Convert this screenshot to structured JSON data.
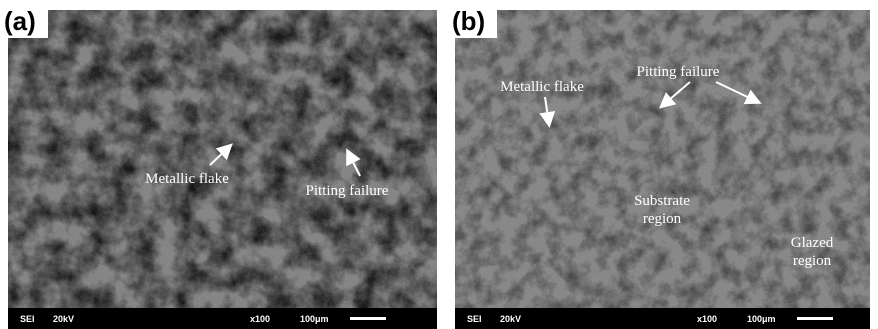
{
  "panels": [
    {
      "label": "(a)",
      "annotations": [
        {
          "lines": [
            "Metallic flake"
          ]
        },
        {
          "lines": [
            "Pitting failure"
          ]
        }
      ],
      "info_bar": {
        "mode": "SEI",
        "voltage": "20kV",
        "magnification": "x100",
        "scale": "100μm"
      }
    },
    {
      "label": "(b)",
      "annotations": [
        {
          "lines": [
            "Metallic flake"
          ]
        },
        {
          "lines": [
            "Pitting failure"
          ]
        },
        {
          "lines": [
            "Substrate",
            "region"
          ]
        },
        {
          "lines": [
            "Glazed",
            "region"
          ]
        }
      ],
      "info_bar": {
        "mode": "SEI",
        "voltage": "20kV",
        "magnification": "x100",
        "scale": "100μm"
      }
    }
  ]
}
